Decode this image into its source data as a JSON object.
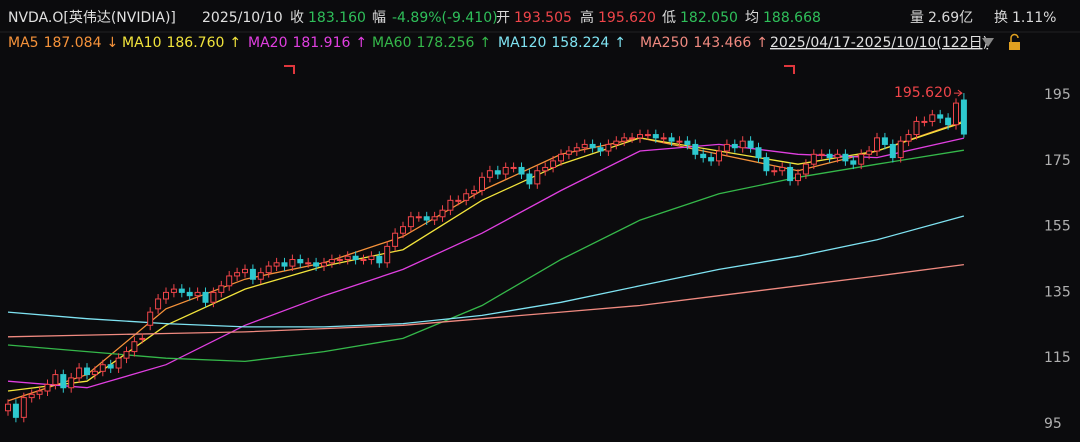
{
  "header": {
    "symbol": "NVDA.O[英伟达(NVIDIA)]",
    "date": "2025/10/10",
    "fields": [
      {
        "label": "收",
        "value": "183.160",
        "color": "#2fbf5a"
      },
      {
        "label": "幅",
        "value": "-4.89%(-9.410)",
        "color": "#2fbf5a"
      },
      {
        "label": "开",
        "value": "193.505",
        "color": "#f0454a"
      },
      {
        "label": "高",
        "value": "195.620",
        "color": "#f0454a"
      },
      {
        "label": "低",
        "value": "182.050",
        "color": "#2fbf5a"
      },
      {
        "label": "均",
        "value": "188.668",
        "color": "#2fbf5a"
      },
      {
        "label": "量",
        "value": "2.69亿",
        "color": "#d8d8d8"
      },
      {
        "label": "换",
        "value": "1.11%",
        "color": "#d8d8d8"
      }
    ]
  },
  "chart_data": {
    "type": "candlestick",
    "range_label": "2025/04/17-2025/10/10(122日)",
    "max_label": "195.620",
    "up_color": "#f0454a",
    "down_color": "#2ec9cf",
    "ylim": [
      89.5,
      207.2
    ],
    "yticks": [
      95,
      115,
      135,
      155,
      175,
      195
    ],
    "open": [
      99,
      101,
      97,
      103,
      104,
      105,
      107,
      110,
      106,
      109,
      112,
      110,
      111,
      113,
      112,
      115,
      117,
      121,
      125,
      130,
      133,
      135,
      136,
      135,
      134,
      135,
      132,
      135,
      137,
      140,
      141,
      142,
      139,
      141,
      143,
      144,
      143,
      145,
      144,
      144,
      143,
      144,
      145,
      145,
      146,
      145,
      145,
      146,
      144,
      149,
      153,
      155,
      158,
      158,
      157,
      158,
      160,
      163,
      163,
      165,
      166,
      170,
      172,
      171,
      173,
      173,
      171,
      168,
      172,
      173,
      175,
      177,
      178,
      179,
      180,
      179,
      178,
      180,
      181,
      182,
      182,
      183,
      183,
      182,
      182,
      181,
      181,
      180,
      177,
      176,
      175,
      178,
      180,
      179,
      181,
      179,
      176,
      172,
      172,
      173,
      169,
      171,
      174,
      177,
      177,
      176,
      177,
      175,
      174,
      177,
      178,
      182,
      180,
      176,
      181,
      183,
      187,
      187,
      189,
      188,
      186,
      193.505
    ],
    "high": [
      102.5,
      102.5,
      104.5,
      105.5,
      106.5,
      108.5,
      111.5,
      111.5,
      110.5,
      113.5,
      113.5,
      112.5,
      114.5,
      114.5,
      116.5,
      118.5,
      121.5,
      122.5,
      130.5,
      134.5,
      136.5,
      137.5,
      137.5,
      136.5,
      136.5,
      136.5,
      136.5,
      138.5,
      141.5,
      142.5,
      143.5,
      143.5,
      142.5,
      144.5,
      145.5,
      145.5,
      146.5,
      146.5,
      145.5,
      145.5,
      145.5,
      146.5,
      146.5,
      147.5,
      147.5,
      146.5,
      147.5,
      147.5,
      150.5,
      154.5,
      156.5,
      159.5,
      159.5,
      159.5,
      159.5,
      161.5,
      164.5,
      164.5,
      166.5,
      167.5,
      171.5,
      173.5,
      173.5,
      174.5,
      174.5,
      174.5,
      172.5,
      173.5,
      174.5,
      176.5,
      178.5,
      179.5,
      180.5,
      181.5,
      181.5,
      180.5,
      181.5,
      182.5,
      183.5,
      183.5,
      184.5,
      184.5,
      184.5,
      183.5,
      183.5,
      182.5,
      182.5,
      181.5,
      178.5,
      177.5,
      179.5,
      181.5,
      181.5,
      182.5,
      182.5,
      180.5,
      177.5,
      173.5,
      174.5,
      174.5,
      172.5,
      175.5,
      178.5,
      178.5,
      178.5,
      178.5,
      178.5,
      176.5,
      178.5,
      179.5,
      183.5,
      183.5,
      181.5,
      182.5,
      184.5,
      188.5,
      188.5,
      190.5,
      190.5,
      189.5,
      194,
      195.62
    ],
    "low": [
      97.5,
      95.5,
      95.5,
      101.5,
      102.5,
      103.5,
      105.5,
      104.5,
      104.5,
      107.5,
      108.5,
      108.5,
      109.5,
      110.5,
      110.5,
      113.5,
      115.5,
      119.5,
      123.5,
      128.5,
      131.5,
      133.5,
      133.5,
      132.5,
      132.5,
      130.5,
      130.5,
      133.5,
      135.5,
      138.5,
      139.5,
      137.5,
      137.5,
      139.5,
      141.5,
      141.5,
      141.5,
      142.5,
      142.5,
      141.5,
      141.5,
      142.5,
      143.5,
      143.5,
      143.5,
      143.5,
      143.5,
      142.5,
      142.5,
      147.5,
      151.5,
      153.5,
      156.5,
      155.5,
      155.5,
      156.5,
      158.5,
      161.5,
      161.5,
      163.5,
      164.5,
      168.5,
      169.5,
      169.5,
      171.5,
      169.5,
      166.5,
      166.5,
      170.5,
      171.5,
      173.5,
      175.5,
      176.5,
      177.5,
      177.5,
      176.5,
      176.5,
      178.5,
      179.5,
      180.5,
      180.5,
      181.5,
      180.5,
      180.5,
      179.5,
      179.5,
      178.5,
      175.5,
      174.5,
      173.5,
      173.5,
      176.5,
      177.5,
      177.5,
      177.5,
      174.5,
      170.5,
      170.5,
      170.5,
      167.5,
      167.5,
      169.5,
      172.5,
      175.5,
      174.5,
      174.5,
      173.5,
      172.5,
      172.5,
      175.5,
      176.5,
      178.5,
      174.5,
      174.5,
      179.5,
      181.5,
      185.5,
      185.5,
      186.5,
      184.5,
      184.5,
      182.05
    ],
    "close": [
      101,
      97,
      103,
      104,
      105,
      107,
      110,
      106,
      109,
      112,
      110,
      111,
      113,
      112,
      115,
      117,
      120,
      121,
      129,
      133,
      135,
      136,
      135,
      134,
      135,
      132,
      135,
      137,
      140,
      141,
      142,
      139,
      141,
      143,
      144,
      143,
      145,
      144,
      144,
      143,
      144,
      145,
      145,
      146,
      145,
      145,
      146,
      144,
      149,
      153,
      155,
      158,
      158,
      157,
      158,
      160,
      163,
      163,
      165,
      166,
      170,
      172,
      171,
      173,
      173,
      171,
      168,
      172,
      173,
      175,
      177,
      178,
      179,
      180,
      179,
      178,
      180,
      181,
      182,
      182,
      183,
      183,
      182,
      182,
      181,
      181,
      180,
      177,
      176,
      175,
      178,
      180,
      179,
      181,
      179,
      176,
      172,
      172,
      173,
      169,
      171,
      174,
      177,
      177,
      176,
      177,
      175,
      174,
      177,
      178,
      182,
      180,
      176,
      181,
      183,
      187,
      187,
      189,
      188,
      186,
      192.57,
      183.16
    ],
    "ma_x": [
      0,
      10,
      20,
      30,
      40,
      50,
      60,
      70,
      80,
      90,
      100,
      110,
      121
    ],
    "series": [
      {
        "name": "MA5",
        "label": "187.084",
        "arrow": "↓",
        "color": "#f5923a",
        "values": [
          102,
          110,
          130,
          139,
          144,
          152,
          166,
          177,
          182,
          177,
          172,
          178,
          187.084
        ]
      },
      {
        "name": "MA10",
        "label": "186.760",
        "arrow": "↑",
        "color": "#f2e43c",
        "values": [
          105,
          108,
          125,
          136,
          143,
          148,
          163,
          174,
          182,
          178,
          174,
          178,
          186.76
        ]
      },
      {
        "name": "MA20",
        "label": "181.916",
        "arrow": "↑",
        "color": "#e03fe0",
        "values": [
          108,
          106,
          113,
          125,
          134,
          142,
          153,
          166,
          178,
          180,
          177,
          176,
          181.916
        ]
      },
      {
        "name": "MA60",
        "label": "178.256",
        "arrow": "↑",
        "color": "#35b84a",
        "values": [
          119,
          117,
          115,
          114,
          117,
          121,
          131,
          145,
          157,
          165,
          170,
          174,
          178.256
        ]
      },
      {
        "name": "MA120",
        "label": "158.224",
        "arrow": "↑",
        "color": "#7fe3f2",
        "values": [
          129,
          127,
          125.5,
          124.5,
          124.5,
          125.5,
          128,
          132,
          137,
          142,
          146,
          151,
          158.224
        ]
      },
      {
        "name": "MA250",
        "label": "143.466",
        "arrow": "↑",
        "color": "#f08a80",
        "values": [
          121.5,
          122,
          122.5,
          123,
          124,
          125,
          127,
          129,
          131,
          134,
          137,
          140,
          143.466
        ]
      }
    ]
  }
}
